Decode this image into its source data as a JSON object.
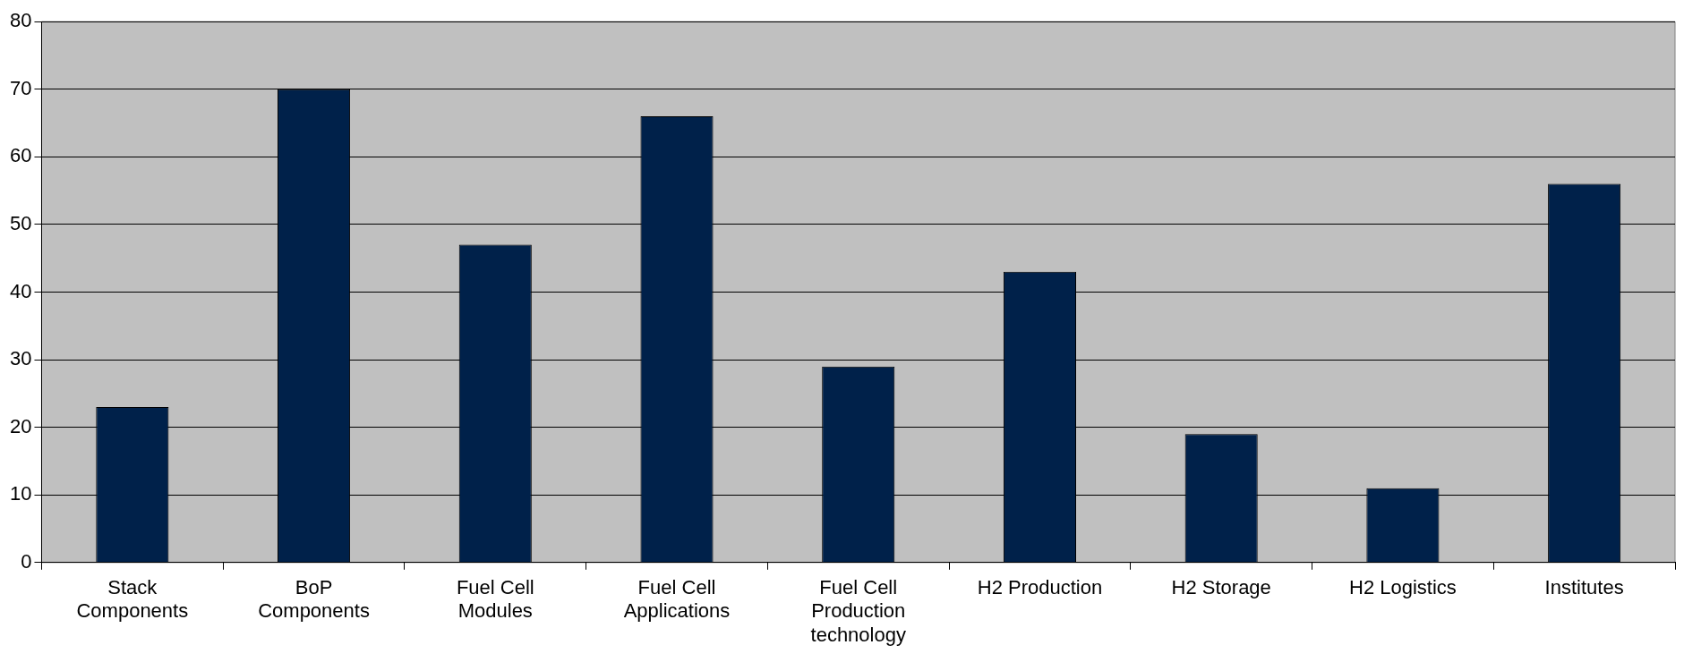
{
  "chart_data": {
    "type": "bar",
    "categories": [
      "Stack Components",
      "BoP Components",
      "Fuel Cell Modules",
      "Fuel Cell Applications",
      "Fuel Cell Production technology",
      "H2 Production",
      "H2 Storage",
      "H2 Logistics",
      "Institutes"
    ],
    "values": [
      23,
      70,
      47,
      66,
      29,
      43,
      19,
      11,
      56
    ],
    "color": "#00214a",
    "ylim": [
      0,
      80
    ],
    "yticks": [
      0,
      10,
      20,
      30,
      40,
      50,
      60,
      70,
      80
    ],
    "grid": "y",
    "legend": false
  }
}
